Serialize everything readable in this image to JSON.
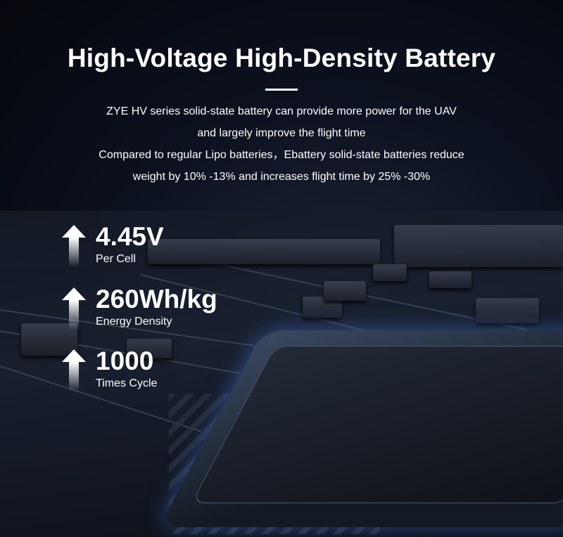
{
  "header": {
    "title": "High-Voltage High-Density Battery",
    "description_lines": [
      "ZYE HV series solid-state battery can provide more power for the UAV",
      "and largely improve the flight time",
      "Compared to regular Lipo batteries，Ebattery solid-state batteries reduce",
      "weight by 10% -13% and increases flight time by 25% -30%"
    ]
  },
  "features": [
    {
      "value": "4.45V",
      "label": "Per Cell",
      "icon": "arrow-up-icon"
    },
    {
      "value": "260Wh/kg",
      "label": "Energy Density",
      "icon": "arrow-up-icon"
    },
    {
      "value": "1000",
      "label": "Times Cycle",
      "icon": "arrow-up-icon"
    }
  ],
  "colors": {
    "background": "#0d1220",
    "text": "#ffffff",
    "glow": "#4678dc"
  }
}
